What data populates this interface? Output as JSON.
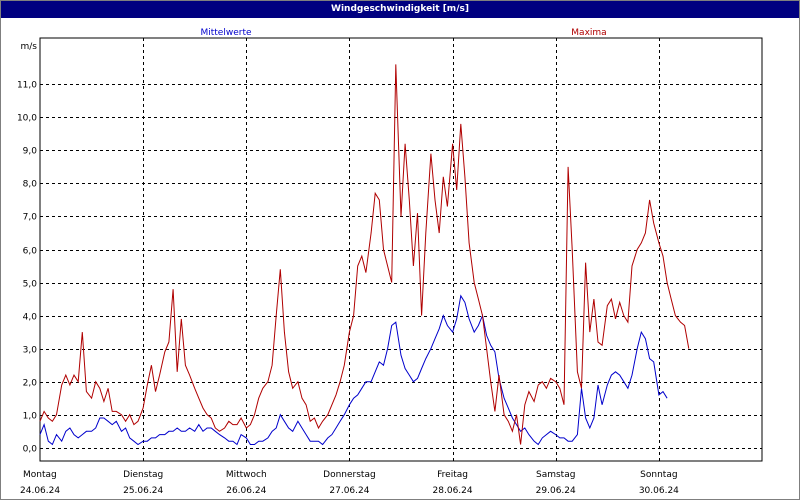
{
  "title": "Windgeschwindigkeit [m/s]",
  "chart_data": {
    "type": "line",
    "title": "Windgeschwindigkeit [m/s]",
    "ylabel": "m/s",
    "ylim": [
      -0.4,
      12.4
    ],
    "y_ticks": [
      "0,0",
      "1,0",
      "2,0",
      "3,0",
      "4,0",
      "5,0",
      "6,0",
      "7,0",
      "8,0",
      "9,0",
      "10,0",
      "11,0"
    ],
    "grid": true,
    "x_range": [
      0,
      7
    ],
    "day_ticks": [
      {
        "day": "Montag",
        "date": "24.06.24"
      },
      {
        "day": "Dienstag",
        "date": "25.06.24"
      },
      {
        "day": "Mittwoch",
        "date": "26.06.24"
      },
      {
        "day": "Donnerstag",
        "date": "27.06.24"
      },
      {
        "day": "Freitag",
        "date": "28.06.24"
      },
      {
        "day": "Samstag",
        "date": "29.06.24"
      },
      {
        "day": "Sonntag",
        "date": "30.06.24"
      }
    ],
    "series": [
      {
        "name": "Mittelwerte",
        "color": "#0000cc",
        "points": [
          [
            0.0,
            0.4
          ],
          [
            0.04,
            0.7
          ],
          [
            0.08,
            0.2
          ],
          [
            0.12,
            0.1
          ],
          [
            0.16,
            0.4
          ],
          [
            0.21,
            0.2
          ],
          [
            0.25,
            0.5
          ],
          [
            0.29,
            0.6
          ],
          [
            0.33,
            0.4
          ],
          [
            0.37,
            0.3
          ],
          [
            0.41,
            0.4
          ],
          [
            0.45,
            0.5
          ],
          [
            0.5,
            0.5
          ],
          [
            0.54,
            0.6
          ],
          [
            0.58,
            0.9
          ],
          [
            0.62,
            0.9
          ],
          [
            0.66,
            0.8
          ],
          [
            0.7,
            0.7
          ],
          [
            0.74,
            0.8
          ],
          [
            0.79,
            0.5
          ],
          [
            0.83,
            0.6
          ],
          [
            0.87,
            0.3
          ],
          [
            0.91,
            0.2
          ],
          [
            0.95,
            0.1
          ],
          [
            1.0,
            0.2
          ],
          [
            1.04,
            0.2
          ],
          [
            1.08,
            0.3
          ],
          [
            1.12,
            0.3
          ],
          [
            1.16,
            0.4
          ],
          [
            1.21,
            0.4
          ],
          [
            1.25,
            0.5
          ],
          [
            1.29,
            0.5
          ],
          [
            1.33,
            0.6
          ],
          [
            1.37,
            0.5
          ],
          [
            1.41,
            0.5
          ],
          [
            1.45,
            0.6
          ],
          [
            1.5,
            0.5
          ],
          [
            1.54,
            0.7
          ],
          [
            1.58,
            0.5
          ],
          [
            1.62,
            0.6
          ],
          [
            1.66,
            0.6
          ],
          [
            1.7,
            0.5
          ],
          [
            1.74,
            0.4
          ],
          [
            1.79,
            0.3
          ],
          [
            1.83,
            0.2
          ],
          [
            1.87,
            0.2
          ],
          [
            1.91,
            0.1
          ],
          [
            1.95,
            0.4
          ],
          [
            2.0,
            0.3
          ],
          [
            2.04,
            0.1
          ],
          [
            2.08,
            0.1
          ],
          [
            2.12,
            0.2
          ],
          [
            2.16,
            0.2
          ],
          [
            2.21,
            0.3
          ],
          [
            2.25,
            0.5
          ],
          [
            2.29,
            0.6
          ],
          [
            2.33,
            1.0
          ],
          [
            2.37,
            0.8
          ],
          [
            2.41,
            0.6
          ],
          [
            2.45,
            0.5
          ],
          [
            2.5,
            0.8
          ],
          [
            2.54,
            0.6
          ],
          [
            2.58,
            0.4
          ],
          [
            2.62,
            0.2
          ],
          [
            2.66,
            0.2
          ],
          [
            2.7,
            0.2
          ],
          [
            2.74,
            0.1
          ],
          [
            2.79,
            0.3
          ],
          [
            2.83,
            0.4
          ],
          [
            2.87,
            0.6
          ],
          [
            2.91,
            0.8
          ],
          [
            2.95,
            1.0
          ],
          [
            3.0,
            1.3
          ],
          [
            3.04,
            1.5
          ],
          [
            3.08,
            1.6
          ],
          [
            3.12,
            1.8
          ],
          [
            3.16,
            2.0
          ],
          [
            3.21,
            2.0
          ],
          [
            3.25,
            2.3
          ],
          [
            3.29,
            2.6
          ],
          [
            3.33,
            2.5
          ],
          [
            3.37,
            3.0
          ],
          [
            3.41,
            3.7
          ],
          [
            3.45,
            3.8
          ],
          [
            3.5,
            2.8
          ],
          [
            3.54,
            2.4
          ],
          [
            3.58,
            2.2
          ],
          [
            3.62,
            2.0
          ],
          [
            3.66,
            2.1
          ],
          [
            3.7,
            2.4
          ],
          [
            3.74,
            2.7
          ],
          [
            3.79,
            3.0
          ],
          [
            3.83,
            3.3
          ],
          [
            3.87,
            3.6
          ],
          [
            3.91,
            4.0
          ],
          [
            3.95,
            3.7
          ],
          [
            4.0,
            3.5
          ],
          [
            4.04,
            3.9
          ],
          [
            4.08,
            4.6
          ],
          [
            4.12,
            4.4
          ],
          [
            4.16,
            3.9
          ],
          [
            4.21,
            3.5
          ],
          [
            4.25,
            3.7
          ],
          [
            4.29,
            4.0
          ],
          [
            4.33,
            3.4
          ],
          [
            4.37,
            3.1
          ],
          [
            4.41,
            2.9
          ],
          [
            4.45,
            2.1
          ],
          [
            4.5,
            1.5
          ],
          [
            4.54,
            1.2
          ],
          [
            4.58,
            0.9
          ],
          [
            4.62,
            0.7
          ],
          [
            4.66,
            0.5
          ],
          [
            4.7,
            0.6
          ],
          [
            4.74,
            0.4
          ],
          [
            4.79,
            0.2
          ],
          [
            4.83,
            0.1
          ],
          [
            4.87,
            0.3
          ],
          [
            4.91,
            0.4
          ],
          [
            4.95,
            0.5
          ],
          [
            5.0,
            0.4
          ],
          [
            5.04,
            0.3
          ],
          [
            5.08,
            0.3
          ],
          [
            5.12,
            0.2
          ],
          [
            5.16,
            0.2
          ],
          [
            5.21,
            0.4
          ],
          [
            5.25,
            1.8
          ],
          [
            5.29,
            0.9
          ],
          [
            5.33,
            0.6
          ],
          [
            5.37,
            0.9
          ],
          [
            5.41,
            1.9
          ],
          [
            5.45,
            1.3
          ],
          [
            5.5,
            1.9
          ],
          [
            5.54,
            2.2
          ],
          [
            5.58,
            2.3
          ],
          [
            5.62,
            2.2
          ],
          [
            5.66,
            2.0
          ],
          [
            5.7,
            1.8
          ],
          [
            5.74,
            2.2
          ],
          [
            5.79,
            3.0
          ],
          [
            5.83,
            3.5
          ],
          [
            5.87,
            3.3
          ],
          [
            5.91,
            2.7
          ],
          [
            5.95,
            2.6
          ],
          [
            6.0,
            1.6
          ],
          [
            6.04,
            1.7
          ],
          [
            6.08,
            1.5
          ]
        ]
      },
      {
        "name": "Maxima",
        "color": "#b00000",
        "points": [
          [
            0.0,
            0.8
          ],
          [
            0.04,
            1.1
          ],
          [
            0.08,
            0.9
          ],
          [
            0.12,
            0.8
          ],
          [
            0.16,
            1.0
          ],
          [
            0.21,
            1.9
          ],
          [
            0.25,
            2.2
          ],
          [
            0.29,
            1.9
          ],
          [
            0.33,
            2.2
          ],
          [
            0.37,
            2.0
          ],
          [
            0.41,
            3.5
          ],
          [
            0.45,
            1.7
          ],
          [
            0.5,
            1.5
          ],
          [
            0.54,
            2.0
          ],
          [
            0.58,
            1.8
          ],
          [
            0.62,
            1.4
          ],
          [
            0.66,
            1.8
          ],
          [
            0.7,
            1.1
          ],
          [
            0.74,
            1.1
          ],
          [
            0.79,
            1.0
          ],
          [
            0.83,
            0.8
          ],
          [
            0.87,
            1.0
          ],
          [
            0.91,
            0.7
          ],
          [
            0.95,
            0.8
          ],
          [
            1.0,
            1.2
          ],
          [
            1.04,
            1.9
          ],
          [
            1.08,
            2.5
          ],
          [
            1.12,
            1.7
          ],
          [
            1.16,
            2.2
          ],
          [
            1.21,
            2.9
          ],
          [
            1.25,
            3.2
          ],
          [
            1.29,
            4.8
          ],
          [
            1.33,
            2.3
          ],
          [
            1.37,
            3.9
          ],
          [
            1.41,
            2.5
          ],
          [
            1.45,
            2.2
          ],
          [
            1.5,
            1.8
          ],
          [
            1.54,
            1.5
          ],
          [
            1.58,
            1.2
          ],
          [
            1.62,
            1.0
          ],
          [
            1.66,
            0.9
          ],
          [
            1.7,
            0.6
          ],
          [
            1.74,
            0.5
          ],
          [
            1.79,
            0.6
          ],
          [
            1.83,
            0.8
          ],
          [
            1.87,
            0.7
          ],
          [
            1.91,
            0.7
          ],
          [
            1.95,
            0.9
          ],
          [
            2.0,
            0.6
          ],
          [
            2.04,
            0.7
          ],
          [
            2.08,
            1.0
          ],
          [
            2.12,
            1.5
          ],
          [
            2.16,
            1.8
          ],
          [
            2.21,
            2.0
          ],
          [
            2.25,
            2.5
          ],
          [
            2.29,
            4.0
          ],
          [
            2.33,
            5.4
          ],
          [
            2.37,
            3.5
          ],
          [
            2.41,
            2.3
          ],
          [
            2.45,
            1.8
          ],
          [
            2.5,
            2.0
          ],
          [
            2.54,
            1.5
          ],
          [
            2.58,
            1.3
          ],
          [
            2.62,
            0.8
          ],
          [
            2.66,
            0.9
          ],
          [
            2.7,
            0.6
          ],
          [
            2.74,
            0.8
          ],
          [
            2.79,
            1.0
          ],
          [
            2.83,
            1.3
          ],
          [
            2.87,
            1.6
          ],
          [
            2.91,
            2.0
          ],
          [
            2.95,
            2.5
          ],
          [
            3.0,
            3.5
          ],
          [
            3.04,
            4.0
          ],
          [
            3.08,
            5.5
          ],
          [
            3.12,
            5.8
          ],
          [
            3.16,
            5.3
          ],
          [
            3.21,
            6.5
          ],
          [
            3.25,
            7.7
          ],
          [
            3.29,
            7.5
          ],
          [
            3.33,
            6.0
          ],
          [
            3.37,
            5.5
          ],
          [
            3.41,
            5.0
          ],
          [
            3.45,
            11.6
          ],
          [
            3.5,
            7.0
          ],
          [
            3.54,
            9.2
          ],
          [
            3.58,
            7.5
          ],
          [
            3.62,
            5.5
          ],
          [
            3.66,
            7.1
          ],
          [
            3.7,
            4.0
          ],
          [
            3.74,
            6.5
          ],
          [
            3.79,
            8.9
          ],
          [
            3.83,
            7.5
          ],
          [
            3.87,
            6.5
          ],
          [
            3.91,
            8.2
          ],
          [
            3.95,
            7.3
          ],
          [
            4.0,
            9.2
          ],
          [
            4.04,
            7.8
          ],
          [
            4.08,
            9.8
          ],
          [
            4.12,
            8.2
          ],
          [
            4.16,
            6.2
          ],
          [
            4.21,
            5.0
          ],
          [
            4.25,
            4.5
          ],
          [
            4.29,
            4.0
          ],
          [
            4.33,
            3.0
          ],
          [
            4.37,
            2.0
          ],
          [
            4.41,
            1.1
          ],
          [
            4.45,
            2.2
          ],
          [
            4.5,
            1.0
          ],
          [
            4.54,
            0.8
          ],
          [
            4.58,
            0.5
          ],
          [
            4.62,
            1.0
          ],
          [
            4.66,
            0.1
          ],
          [
            4.7,
            1.3
          ],
          [
            4.74,
            1.7
          ],
          [
            4.79,
            1.4
          ],
          [
            4.83,
            1.9
          ],
          [
            4.87,
            2.0
          ],
          [
            4.91,
            1.8
          ],
          [
            4.95,
            2.1
          ],
          [
            5.0,
            2.0
          ],
          [
            5.04,
            1.8
          ],
          [
            5.08,
            1.3
          ],
          [
            5.12,
            8.5
          ],
          [
            5.16,
            6.0
          ],
          [
            5.21,
            2.3
          ],
          [
            5.25,
            1.8
          ],
          [
            5.29,
            5.6
          ],
          [
            5.33,
            3.5
          ],
          [
            5.37,
            4.5
          ],
          [
            5.41,
            3.2
          ],
          [
            5.45,
            3.1
          ],
          [
            5.5,
            4.3
          ],
          [
            5.54,
            4.5
          ],
          [
            5.58,
            3.9
          ],
          [
            5.62,
            4.4
          ],
          [
            5.66,
            4.0
          ],
          [
            5.7,
            3.8
          ],
          [
            5.74,
            5.5
          ],
          [
            5.79,
            6.0
          ],
          [
            5.83,
            6.2
          ],
          [
            5.87,
            6.5
          ],
          [
            5.91,
            7.5
          ],
          [
            5.95,
            6.8
          ],
          [
            6.0,
            6.2
          ],
          [
            6.04,
            5.8
          ],
          [
            6.08,
            5.0
          ],
          [
            6.12,
            4.5
          ],
          [
            6.16,
            4.0
          ],
          [
            6.21,
            3.8
          ],
          [
            6.25,
            3.7
          ],
          [
            6.29,
            3.0
          ]
        ]
      }
    ]
  }
}
